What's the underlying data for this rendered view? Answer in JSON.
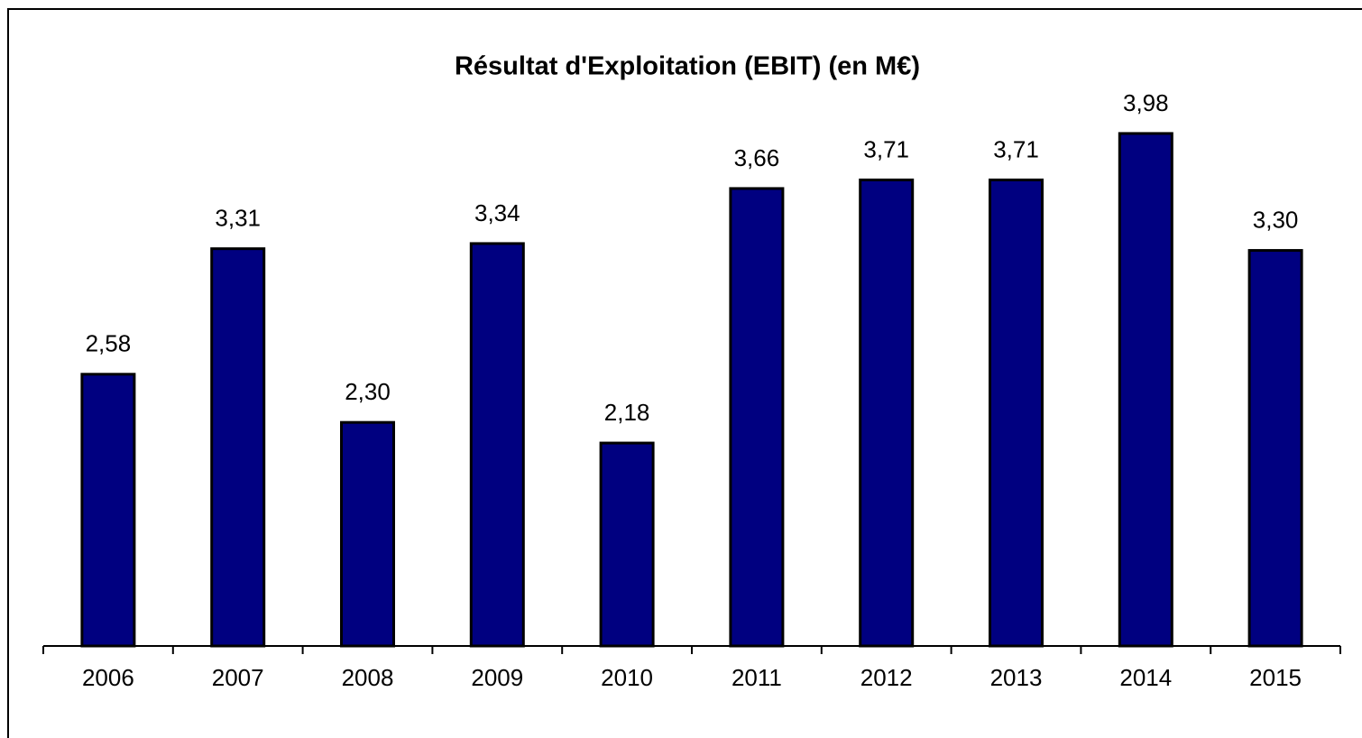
{
  "chart_data": {
    "type": "bar",
    "title": "Résultat d'Exploitation (EBIT) (en M€)",
    "categories": [
      "2006",
      "2007",
      "2008",
      "2009",
      "2010",
      "2011",
      "2012",
      "2013",
      "2014",
      "2015"
    ],
    "values": [
      2.58,
      3.31,
      2.3,
      3.34,
      2.18,
      3.66,
      3.71,
      3.71,
      3.98,
      3.3
    ],
    "value_labels": [
      "2,58",
      "3,31",
      "2,30",
      "3,34",
      "2,18",
      "3,66",
      "3,71",
      "3,71",
      "3,98",
      "3,30"
    ],
    "color": "#000080",
    "ylim": [
      1,
      4.2
    ]
  }
}
